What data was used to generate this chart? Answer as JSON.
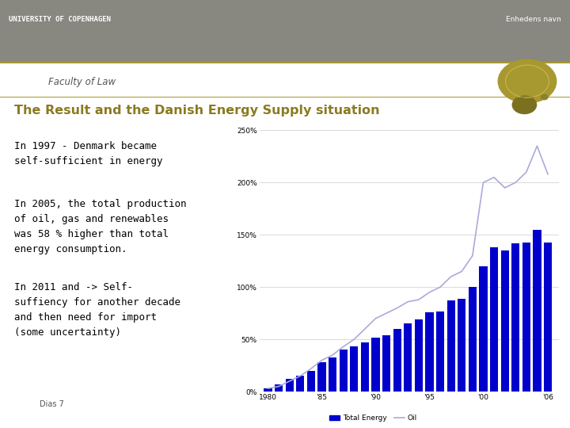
{
  "title": "The Result and the Danish Energy Supply situation",
  "title_color": "#8B7A20",
  "subtitle_faculty": "Faculty of Law",
  "header_text": "UNIVERSITY OF COPENHAGEN",
  "header_right": "Enhedens navn",
  "header_bg": "#888880",
  "slide_bg": "#ffffff",
  "text1": "In 1997 - Denmark became\nself-sufficient in energy",
  "text2": "In 2005, the total production\nof oil, gas and renewables\nwas 58 % higher than total\nenergy consumption.",
  "text3": "In 2011 and -> Self-\nsuffiency for another decade\nand then need for import\n(some uncertainty)",
  "footnote": "Dias 7",
  "separator_color": "#a89830",
  "years": [
    1980,
    1981,
    1982,
    1983,
    1984,
    1985,
    1986,
    1987,
    1988,
    1989,
    1990,
    1991,
    1992,
    1993,
    1994,
    1995,
    1996,
    1997,
    1998,
    1999,
    2000,
    2001,
    2002,
    2003,
    2004,
    2005,
    2006
  ],
  "bar_values": [
    3,
    7,
    12,
    15,
    20,
    28,
    33,
    40,
    43,
    47,
    52,
    54,
    60,
    65,
    69,
    76,
    77,
    87,
    89,
    100,
    120,
    138,
    135,
    142,
    143,
    155,
    143
  ],
  "oil_values": [
    3,
    5,
    10,
    15,
    22,
    30,
    35,
    43,
    50,
    60,
    70,
    75,
    80,
    86,
    88,
    95,
    100,
    110,
    115,
    130,
    200,
    205,
    195,
    200,
    210,
    235,
    208
  ],
  "bar_color": "#0000cc",
  "oil_color": "#aaaadd",
  "chart_bg": "#ffffff",
  "gold_emblem_color": "#a89830",
  "gold_dot1_color": "#7a7020",
  "gold_dot2_color": "#8a8030"
}
